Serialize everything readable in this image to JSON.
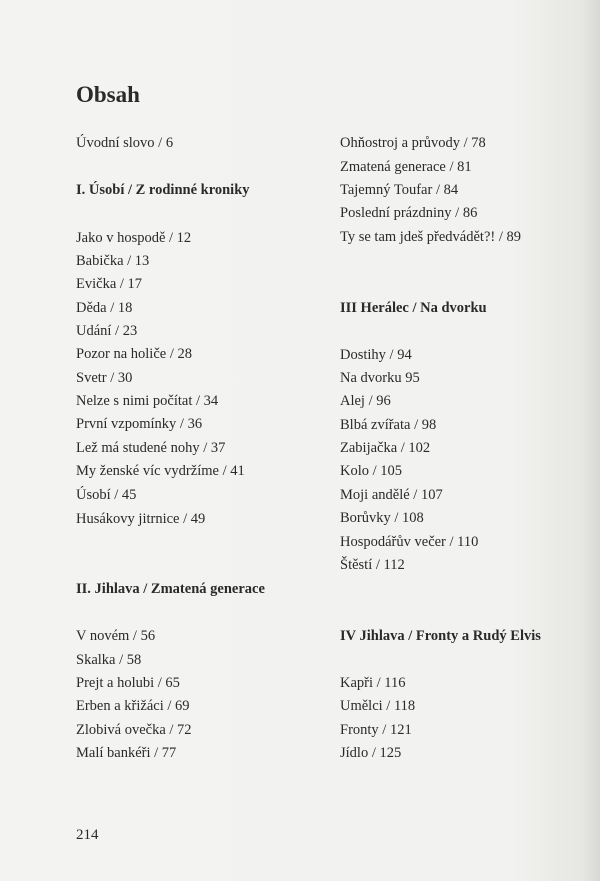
{
  "title": "Obsah",
  "left": [
    "Úvodní slovo / 6",
    "I. Úsobí / Z rodinné kroniky",
    "Jako v hospodě / 12",
    "Babička / 13",
    "Evička / 17",
    "Děda / 18",
    "Udání / 23",
    "Pozor na holiče / 28",
    "Svetr / 30",
    "Nelze s nimi počítat / 34",
    "První vzpomínky / 36",
    "Lež má studené nohy / 37",
    "My ženské víc vydržíme / 41",
    "Úsobí / 45",
    "Husákovy jitrnice / 49",
    "II. Jihlava / Zmatená generace",
    "V novém / 56",
    "Skalka / 58",
    "Prejt a holubi / 65",
    "Erben a křižáci / 69",
    "Zlobivá ovečka / 72",
    "Malí bankéři / 77"
  ],
  "right": [
    "Ohňostroj a průvody / 78",
    "Zmatená generace / 81",
    "Tajemný Toufar / 84",
    "Poslední prázdniny / 86",
    "Ty se tam jdeš předvádět?! / 89",
    "III Herálec / Na dvorku",
    "Dostihy / 94",
    "Na dvorku 95",
    "Alej / 96",
    "Blbá zvířata / 98",
    "Zabijačka / 102",
    "Kolo / 105",
    "Moji andělé / 107",
    "Borůvky / 108",
    "Hospodářův večer / 110",
    "Štěstí / 112",
    "IV Jihlava / Fronty a Rudý Elvis",
    "Kapři / 116",
    "Umělci / 118",
    "Fronty / 121",
    "Jídlo / 125"
  ],
  "page_number": "214"
}
